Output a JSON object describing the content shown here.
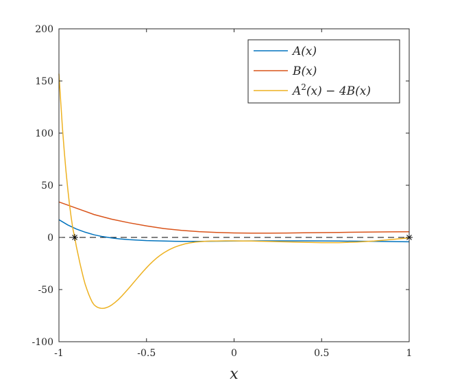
{
  "chart_data": {
    "type": "line",
    "xlabel": "x",
    "ylabel": "",
    "xlim": [
      -1,
      1
    ],
    "ylim": [
      -100,
      200
    ],
    "xticks": [
      -1,
      -0.5,
      0,
      0.5,
      1
    ],
    "xtick_labels": [
      "-1",
      "-0.5",
      "0",
      "0.5",
      "1"
    ],
    "yticks": [
      -100,
      -50,
      0,
      50,
      100,
      150,
      200
    ],
    "ytick_labels": [
      "-100",
      "-50",
      "0",
      "50",
      "100",
      "150",
      "200"
    ],
    "grid": false,
    "legend_position": "top-right",
    "legend": [
      {
        "pre": "A",
        "sup": "",
        "post": "(x)"
      },
      {
        "pre": "B",
        "sup": "",
        "post": "(x)"
      },
      {
        "pre": "A",
        "sup": "2",
        "post": "(x) − 4B(x)"
      }
    ],
    "series": [
      {
        "color": "#0072BD",
        "x": [
          -1,
          -0.95,
          -0.9,
          -0.85,
          -0.8,
          -0.75,
          -0.7,
          -0.65,
          -0.6,
          -0.5,
          -0.4,
          -0.3,
          -0.2,
          -0.1,
          0,
          0.2,
          0.4,
          0.6,
          0.8,
          1
        ],
        "y": [
          17,
          12,
          8,
          5,
          2.5,
          0.8,
          -0.5,
          -1.5,
          -2.2,
          -3,
          -3.5,
          -3.8,
          -3.8,
          -3.6,
          -3.4,
          -3.3,
          -3.3,
          -3.5,
          -3.8,
          -4.2
        ]
      },
      {
        "color": "#D95319",
        "x": [
          -1,
          -0.9,
          -0.8,
          -0.7,
          -0.6,
          -0.5,
          -0.4,
          -0.3,
          -0.2,
          -0.1,
          0,
          0.1,
          0.2,
          0.3,
          0.4,
          0.5,
          0.6,
          0.7,
          0.8,
          0.9,
          1
        ],
        "y": [
          34,
          28,
          22,
          17.5,
          14,
          11,
          8.5,
          6.8,
          5.5,
          4.8,
          4.3,
          4.1,
          4.1,
          4.2,
          4.4,
          4.6,
          4.8,
          5,
          5.2,
          5.3,
          5.4
        ]
      },
      {
        "color": "#EDB120",
        "x": [
          -1,
          -0.99,
          -0.98,
          -0.97,
          -0.96,
          -0.95,
          -0.94,
          -0.93,
          -0.92,
          -0.91,
          -0.9,
          -0.89,
          -0.88,
          -0.87,
          -0.86,
          -0.85,
          -0.84,
          -0.83,
          -0.82,
          -0.81,
          -0.8,
          -0.79,
          -0.78,
          -0.77,
          -0.76,
          -0.75,
          -0.74,
          -0.73,
          -0.72,
          -0.71,
          -0.7,
          -0.68,
          -0.66,
          -0.64,
          -0.62,
          -0.6,
          -0.58,
          -0.56,
          -0.54,
          -0.52,
          -0.5,
          -0.48,
          -0.46,
          -0.44,
          -0.42,
          -0.4,
          -0.37,
          -0.34,
          -0.31,
          -0.28,
          -0.25,
          -0.22,
          -0.19,
          -0.16,
          -0.13,
          -0.1,
          -0.05,
          0,
          0.05,
          0.1,
          0.15,
          0.2,
          0.3,
          0.4,
          0.5,
          0.6,
          0.7,
          0.8,
          0.9,
          1
        ],
        "y": [
          157,
          130,
          105,
          83,
          64,
          47,
          32,
          19,
          8,
          0,
          -9,
          -17,
          -25,
          -32,
          -39,
          -45,
          -50,
          -54.5,
          -58.5,
          -62,
          -64.5,
          -66,
          -67,
          -67.6,
          -67.9,
          -68,
          -67.8,
          -67.4,
          -66.7,
          -65.9,
          -64.9,
          -62.4,
          -59.4,
          -56,
          -52.3,
          -48.5,
          -44.6,
          -40.6,
          -36.7,
          -32.8,
          -29.1,
          -25.6,
          -22.4,
          -19.5,
          -16.9,
          -14.6,
          -11.7,
          -9.4,
          -7.6,
          -6.2,
          -5.2,
          -4.5,
          -4,
          -3.7,
          -3.5,
          -3.4,
          -3.3,
          -3.3,
          -3.4,
          -3.5,
          -3.7,
          -3.9,
          -4.3,
          -4.7,
          -5,
          -5,
          -4.5,
          -3.5,
          -2,
          -0.5
        ]
      },
      {
        "color": "#000000",
        "x": [
          -1,
          1
        ],
        "y": [
          0,
          0
        ],
        "dashed": true
      }
    ],
    "markers": [
      {
        "x": -0.91,
        "y": 0
      },
      {
        "x": 1,
        "y": 0
      }
    ]
  }
}
